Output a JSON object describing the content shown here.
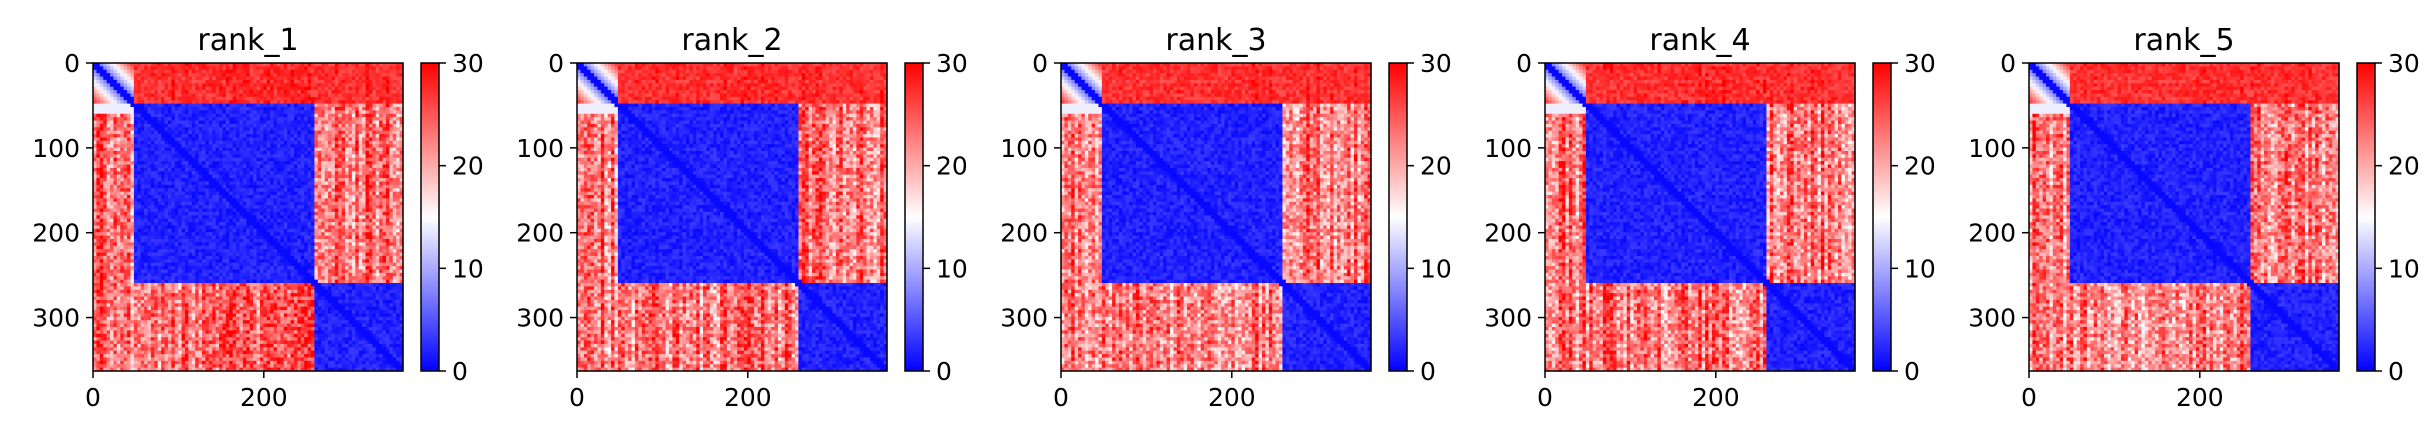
{
  "chart_data": [
    {
      "type": "heatmap",
      "title": "rank_1",
      "xlabel": "",
      "ylabel": "",
      "xlim": [
        0,
        363
      ],
      "ylim": [
        363,
        0
      ],
      "x_ticks": [
        0,
        200
      ],
      "y_ticks": [
        0,
        100,
        200,
        300
      ],
      "colorbar": {
        "min": 0,
        "max": 30,
        "ticks": [
          0,
          10,
          20,
          30
        ],
        "colormap": "bwr"
      },
      "domains": [
        {
          "start": 0,
          "end": 50,
          "mean_value": 12
        },
        {
          "start": 50,
          "end": 260,
          "mean_value": 2
        },
        {
          "start": 260,
          "end": 363,
          "mean_value": 2
        }
      ],
      "inter_domain_mean": 24
    },
    {
      "type": "heatmap",
      "title": "rank_2",
      "xlabel": "",
      "ylabel": "",
      "xlim": [
        0,
        363
      ],
      "ylim": [
        363,
        0
      ],
      "x_ticks": [
        0,
        200
      ],
      "y_ticks": [
        0,
        100,
        200,
        300
      ],
      "colorbar": {
        "min": 0,
        "max": 30,
        "ticks": [
          0,
          10,
          20,
          30
        ],
        "colormap": "bwr"
      },
      "domains": [
        {
          "start": 0,
          "end": 50,
          "mean_value": 12
        },
        {
          "start": 50,
          "end": 260,
          "mean_value": 2
        },
        {
          "start": 260,
          "end": 363,
          "mean_value": 2
        }
      ],
      "inter_domain_mean": 23
    },
    {
      "type": "heatmap",
      "title": "rank_3",
      "xlabel": "",
      "ylabel": "",
      "xlim": [
        0,
        363
      ],
      "ylim": [
        363,
        0
      ],
      "x_ticks": [
        0,
        200
      ],
      "y_ticks": [
        0,
        100,
        200,
        300
      ],
      "colorbar": {
        "min": 0,
        "max": 30,
        "ticks": [
          0,
          10,
          20,
          30
        ],
        "colormap": "bwr"
      },
      "domains": [
        {
          "start": 0,
          "end": 50,
          "mean_value": 12
        },
        {
          "start": 50,
          "end": 260,
          "mean_value": 2
        },
        {
          "start": 260,
          "end": 363,
          "mean_value": 2
        }
      ],
      "inter_domain_mean": 23
    },
    {
      "type": "heatmap",
      "title": "rank_4",
      "xlabel": "",
      "ylabel": "",
      "xlim": [
        0,
        363
      ],
      "ylim": [
        363,
        0
      ],
      "x_ticks": [
        0,
        200
      ],
      "y_ticks": [
        0,
        100,
        200,
        300
      ],
      "colorbar": {
        "min": 0,
        "max": 30,
        "ticks": [
          0,
          10,
          20,
          30
        ],
        "colormap": "bwr"
      },
      "domains": [
        {
          "start": 0,
          "end": 50,
          "mean_value": 12
        },
        {
          "start": 50,
          "end": 260,
          "mean_value": 2
        },
        {
          "start": 260,
          "end": 363,
          "mean_value": 2
        }
      ],
      "inter_domain_mean": 23
    },
    {
      "type": "heatmap",
      "title": "rank_5",
      "xlabel": "",
      "ylabel": "",
      "xlim": [
        0,
        363
      ],
      "ylim": [
        363,
        0
      ],
      "x_ticks": [
        0,
        200
      ],
      "y_ticks": [
        0,
        100,
        200,
        300
      ],
      "colorbar": {
        "min": 0,
        "max": 30,
        "ticks": [
          0,
          10,
          20,
          30
        ],
        "colormap": "bwr"
      },
      "domains": [
        {
          "start": 0,
          "end": 50,
          "mean_value": 12
        },
        {
          "start": 50,
          "end": 260,
          "mean_value": 2
        },
        {
          "start": 260,
          "end": 363,
          "mean_value": 2
        }
      ],
      "inter_domain_mean": 22
    }
  ]
}
